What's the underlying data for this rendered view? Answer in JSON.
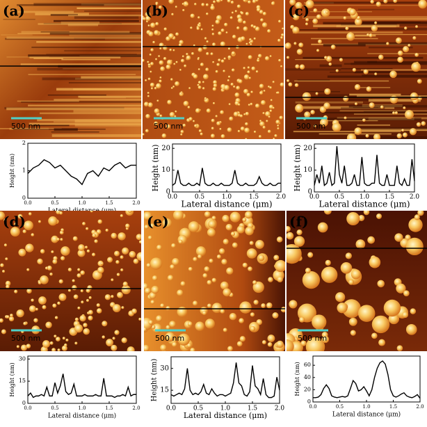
{
  "chart_data": [
    {
      "type": "line",
      "panel_label": "(a)",
      "scale_bar": "500 nm",
      "x_label": "Lateral distance (μm)",
      "y_label": "Height (nm)",
      "color": "#000000",
      "x": [
        0,
        0.1,
        0.2,
        0.3,
        0.4,
        0.5,
        0.6,
        0.7,
        0.8,
        0.9,
        1.0,
        1.1,
        1.2,
        1.3,
        1.4,
        1.5,
        1.6,
        1.7,
        1.8,
        1.9,
        2.0
      ],
      "values": [
        0.9,
        1.1,
        1.2,
        1.4,
        1.3,
        1.1,
        1.2,
        1.0,
        0.8,
        0.7,
        0.5,
        0.9,
        1.0,
        0.8,
        1.1,
        1.0,
        1.2,
        1.3,
        1.1,
        1.2,
        1.2
      ],
      "xlim": [
        0,
        2
      ],
      "ylim": [
        0,
        2
      ],
      "xticks": [
        {
          "value": 0,
          "label": "0.0"
        },
        0.5,
        {
          "value": 1,
          "label": "1.0"
        },
        1.5,
        {
          "value": 2,
          "label": "2.0"
        }
      ],
      "yticks": [
        0,
        1,
        2
      ]
    },
    {
      "type": "line",
      "panel_label": "(b)",
      "scale_bar": "500 nm",
      "x_label": "Lateral distance (μm)",
      "y_label": "Height (nm)",
      "color": "#000000",
      "x": [
        0,
        0.05,
        0.1,
        0.15,
        0.2,
        0.25,
        0.3,
        0.35,
        0.4,
        0.45,
        0.5,
        0.55,
        0.6,
        0.65,
        0.7,
        0.75,
        0.8,
        0.85,
        0.9,
        0.95,
        1.0,
        1.05,
        1.1,
        1.15,
        1.2,
        1.25,
        1.3,
        1.35,
        1.4,
        1.45,
        1.5,
        1.55,
        1.6,
        1.65,
        1.7,
        1.75,
        1.8,
        1.85,
        1.9,
        1.95,
        2.0
      ],
      "values": [
        3,
        4,
        10,
        4,
        3,
        3,
        4,
        3,
        3,
        4,
        3,
        11,
        4,
        3,
        3,
        4,
        3,
        3,
        4,
        3,
        3,
        3,
        4,
        10,
        4,
        3,
        3,
        4,
        3,
        3,
        3,
        4,
        7,
        4,
        3,
        3,
        4,
        3,
        3,
        4,
        4
      ],
      "xlim": [
        0,
        2
      ],
      "ylim": [
        0,
        22
      ],
      "xticks": [
        {
          "value": 0,
          "label": "0.0"
        },
        0.5,
        {
          "value": 1,
          "label": "1.0"
        },
        1.5,
        {
          "value": 2,
          "label": "2.0"
        }
      ],
      "yticks": [
        0,
        10,
        20
      ]
    },
    {
      "type": "line",
      "panel_label": "(c)",
      "scale_bar": "500 nm",
      "x_label": "Lateral distance (μm)",
      "y_label": "Height (nm)",
      "color": "#000000",
      "x": [
        0,
        0.05,
        0.1,
        0.15,
        0.2,
        0.25,
        0.3,
        0.35,
        0.4,
        0.45,
        0.5,
        0.55,
        0.6,
        0.65,
        0.7,
        0.75,
        0.8,
        0.85,
        0.9,
        0.95,
        1.0,
        1.05,
        1.1,
        1.15,
        1.2,
        1.25,
        1.3,
        1.35,
        1.4,
        1.45,
        1.5,
        1.55,
        1.6,
        1.65,
        1.7,
        1.75,
        1.8,
        1.85,
        1.9,
        1.95,
        2.0
      ],
      "values": [
        3,
        8,
        4,
        12,
        3,
        4,
        9,
        3,
        4,
        21,
        8,
        4,
        12,
        3,
        3,
        4,
        8,
        3,
        3,
        16,
        4,
        3,
        3,
        4,
        4,
        17,
        4,
        3,
        3,
        8,
        3,
        3,
        3,
        12,
        4,
        3,
        6,
        3,
        3,
        15,
        5
      ],
      "xlim": [
        0,
        2
      ],
      "ylim": [
        0,
        22
      ],
      "xticks": [
        {
          "value": 0,
          "label": "0.0"
        },
        0.5,
        {
          "value": 1,
          "label": "1.0"
        },
        1.5,
        {
          "value": 2,
          "label": "2.0"
        }
      ],
      "yticks": [
        0,
        10,
        20
      ]
    },
    {
      "type": "line",
      "panel_label": "(d)",
      "scale_bar": "500 nm",
      "x_label": "Lateral distance (μm)",
      "y_label": "Height (nm)",
      "color": "#000000",
      "x": [
        0,
        0.05,
        0.1,
        0.15,
        0.2,
        0.25,
        0.3,
        0.35,
        0.4,
        0.45,
        0.5,
        0.55,
        0.6,
        0.65,
        0.7,
        0.75,
        0.8,
        0.85,
        0.9,
        0.95,
        1.0,
        1.05,
        1.1,
        1.15,
        1.2,
        1.25,
        1.3,
        1.35,
        1.4,
        1.45,
        1.5,
        1.55,
        1.6,
        1.65,
        1.7,
        1.75,
        1.8,
        1.85,
        1.9,
        1.95,
        2.0
      ],
      "values": [
        5,
        7,
        4,
        5,
        5,
        6,
        5,
        11,
        5,
        5,
        14,
        7,
        12,
        20,
        8,
        6,
        7,
        13,
        5,
        5,
        5,
        6,
        5,
        5,
        5,
        6,
        5,
        5,
        17,
        5,
        5,
        5,
        4,
        5,
        5,
        6,
        5,
        11,
        5,
        6,
        6
      ],
      "xlim": [
        0,
        2
      ],
      "ylim": [
        0,
        32
      ],
      "xticks": [
        {
          "value": 0,
          "label": "0.0"
        },
        0.5,
        {
          "value": 1,
          "label": "1.0"
        },
        1.5,
        {
          "value": 2,
          "label": "2.0"
        }
      ],
      "yticks": [
        0,
        15,
        30
      ]
    },
    {
      "type": "line",
      "panel_label": "(e)",
      "scale_bar": "500 nm",
      "x_label": "Lateral distance (μm)",
      "y_label": "Height (nm)",
      "color": "#000000",
      "x": [
        0,
        0.05,
        0.1,
        0.15,
        0.2,
        0.25,
        0.3,
        0.35,
        0.4,
        0.45,
        0.5,
        0.55,
        0.6,
        0.65,
        0.7,
        0.75,
        0.8,
        0.85,
        0.9,
        0.95,
        1.0,
        1.05,
        1.1,
        1.15,
        1.2,
        1.25,
        1.3,
        1.35,
        1.4,
        1.45,
        1.5,
        1.55,
        1.6,
        1.65,
        1.7,
        1.75,
        1.8,
        1.85,
        1.9,
        1.95,
        2.0
      ],
      "values": [
        12,
        11,
        12,
        13,
        12,
        16,
        30,
        15,
        12,
        13,
        12,
        14,
        19,
        13,
        12,
        16,
        13,
        11,
        12,
        12,
        11,
        12,
        13,
        20,
        34,
        20,
        18,
        12,
        11,
        14,
        32,
        18,
        16,
        12,
        23,
        12,
        10,
        10,
        11,
        24,
        15
      ],
      "xlim": [
        0,
        2
      ],
      "ylim": [
        6,
        38
      ],
      "xticks": [
        {
          "value": 0,
          "label": "0.0"
        },
        0.5,
        {
          "value": 1,
          "label": "1.0"
        },
        1.5,
        {
          "value": 2,
          "label": "2.0"
        }
      ],
      "yticks": [
        15,
        30
      ]
    },
    {
      "type": "line",
      "panel_label": "(f)",
      "scale_bar": "500 nm",
      "x_label": "Lateral distance (μm)",
      "y_label": "Height (nm)",
      "color": "#000000",
      "x": [
        0,
        0.05,
        0.1,
        0.15,
        0.2,
        0.25,
        0.3,
        0.35,
        0.4,
        0.45,
        0.5,
        0.55,
        0.6,
        0.65,
        0.7,
        0.75,
        0.8,
        0.85,
        0.9,
        0.95,
        1.0,
        1.05,
        1.1,
        1.15,
        1.2,
        1.25,
        1.3,
        1.35,
        1.4,
        1.45,
        1.5,
        1.55,
        1.6,
        1.65,
        1.7,
        1.75,
        1.8,
        1.85,
        1.9,
        1.95,
        2.0
      ],
      "values": [
        7,
        7,
        8,
        12,
        22,
        28,
        22,
        10,
        8,
        7,
        8,
        9,
        8,
        10,
        22,
        35,
        30,
        18,
        20,
        25,
        18,
        10,
        20,
        40,
        55,
        64,
        67,
        62,
        45,
        20,
        10,
        8,
        10,
        13,
        15,
        10,
        8,
        7,
        9,
        12,
        6
      ],
      "xlim": [
        0,
        2
      ],
      "ylim": [
        0,
        75
      ],
      "xticks": [
        {
          "value": 0,
          "label": "0.0"
        },
        0.5,
        {
          "value": 1,
          "label": "1.0"
        },
        1.5,
        {
          "value": 2,
          "label": "2.0"
        }
      ],
      "yticks": [
        0,
        20,
        40,
        60
      ]
    }
  ]
}
